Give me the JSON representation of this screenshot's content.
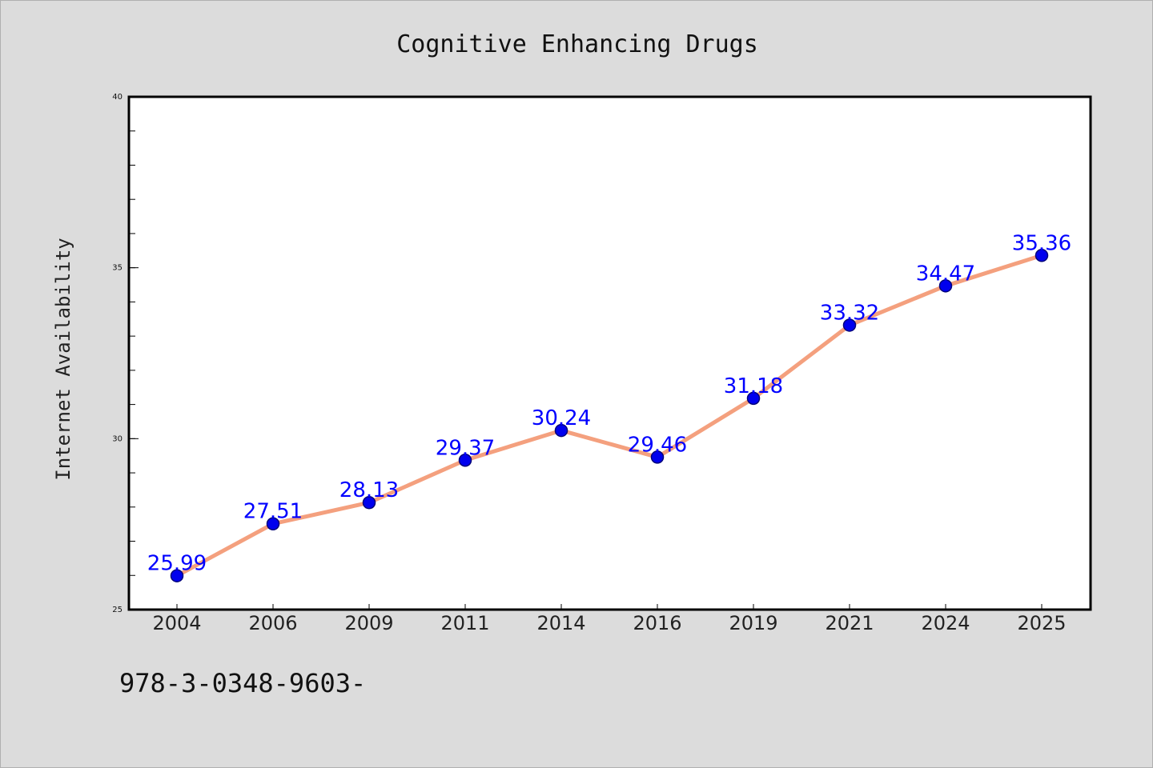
{
  "chart_data": {
    "type": "line",
    "title": "Cognitive Enhancing Drugs",
    "xlabel": "",
    "ylabel": "Internet Availability",
    "categories": [
      "2004",
      "2006",
      "2009",
      "2011",
      "2014",
      "2016",
      "2019",
      "2021",
      "2024",
      "2025"
    ],
    "series": [
      {
        "values": [
          25.99,
          27.51,
          28.13,
          29.37,
          30.24,
          29.46,
          31.18,
          33.32,
          34.47,
          35.36
        ],
        "labels": [
          "25.99",
          "27.51",
          "28.13",
          "29.37",
          "30.24",
          "29.46",
          "31.18",
          "33.32",
          "34.47",
          "35.36"
        ],
        "line_color": "#f4a07e",
        "marker_color": "#0000ee"
      }
    ],
    "ylim": [
      25,
      40
    ],
    "yticks": [
      "25",
      "30",
      "35",
      "40"
    ],
    "grid": false,
    "legend": "none"
  },
  "footer": {
    "text": "978-3-0348-9603-"
  },
  "colors": {
    "background": "#dcdcdc",
    "plot_background": "#ffffff",
    "data_label": "#0000ff"
  }
}
